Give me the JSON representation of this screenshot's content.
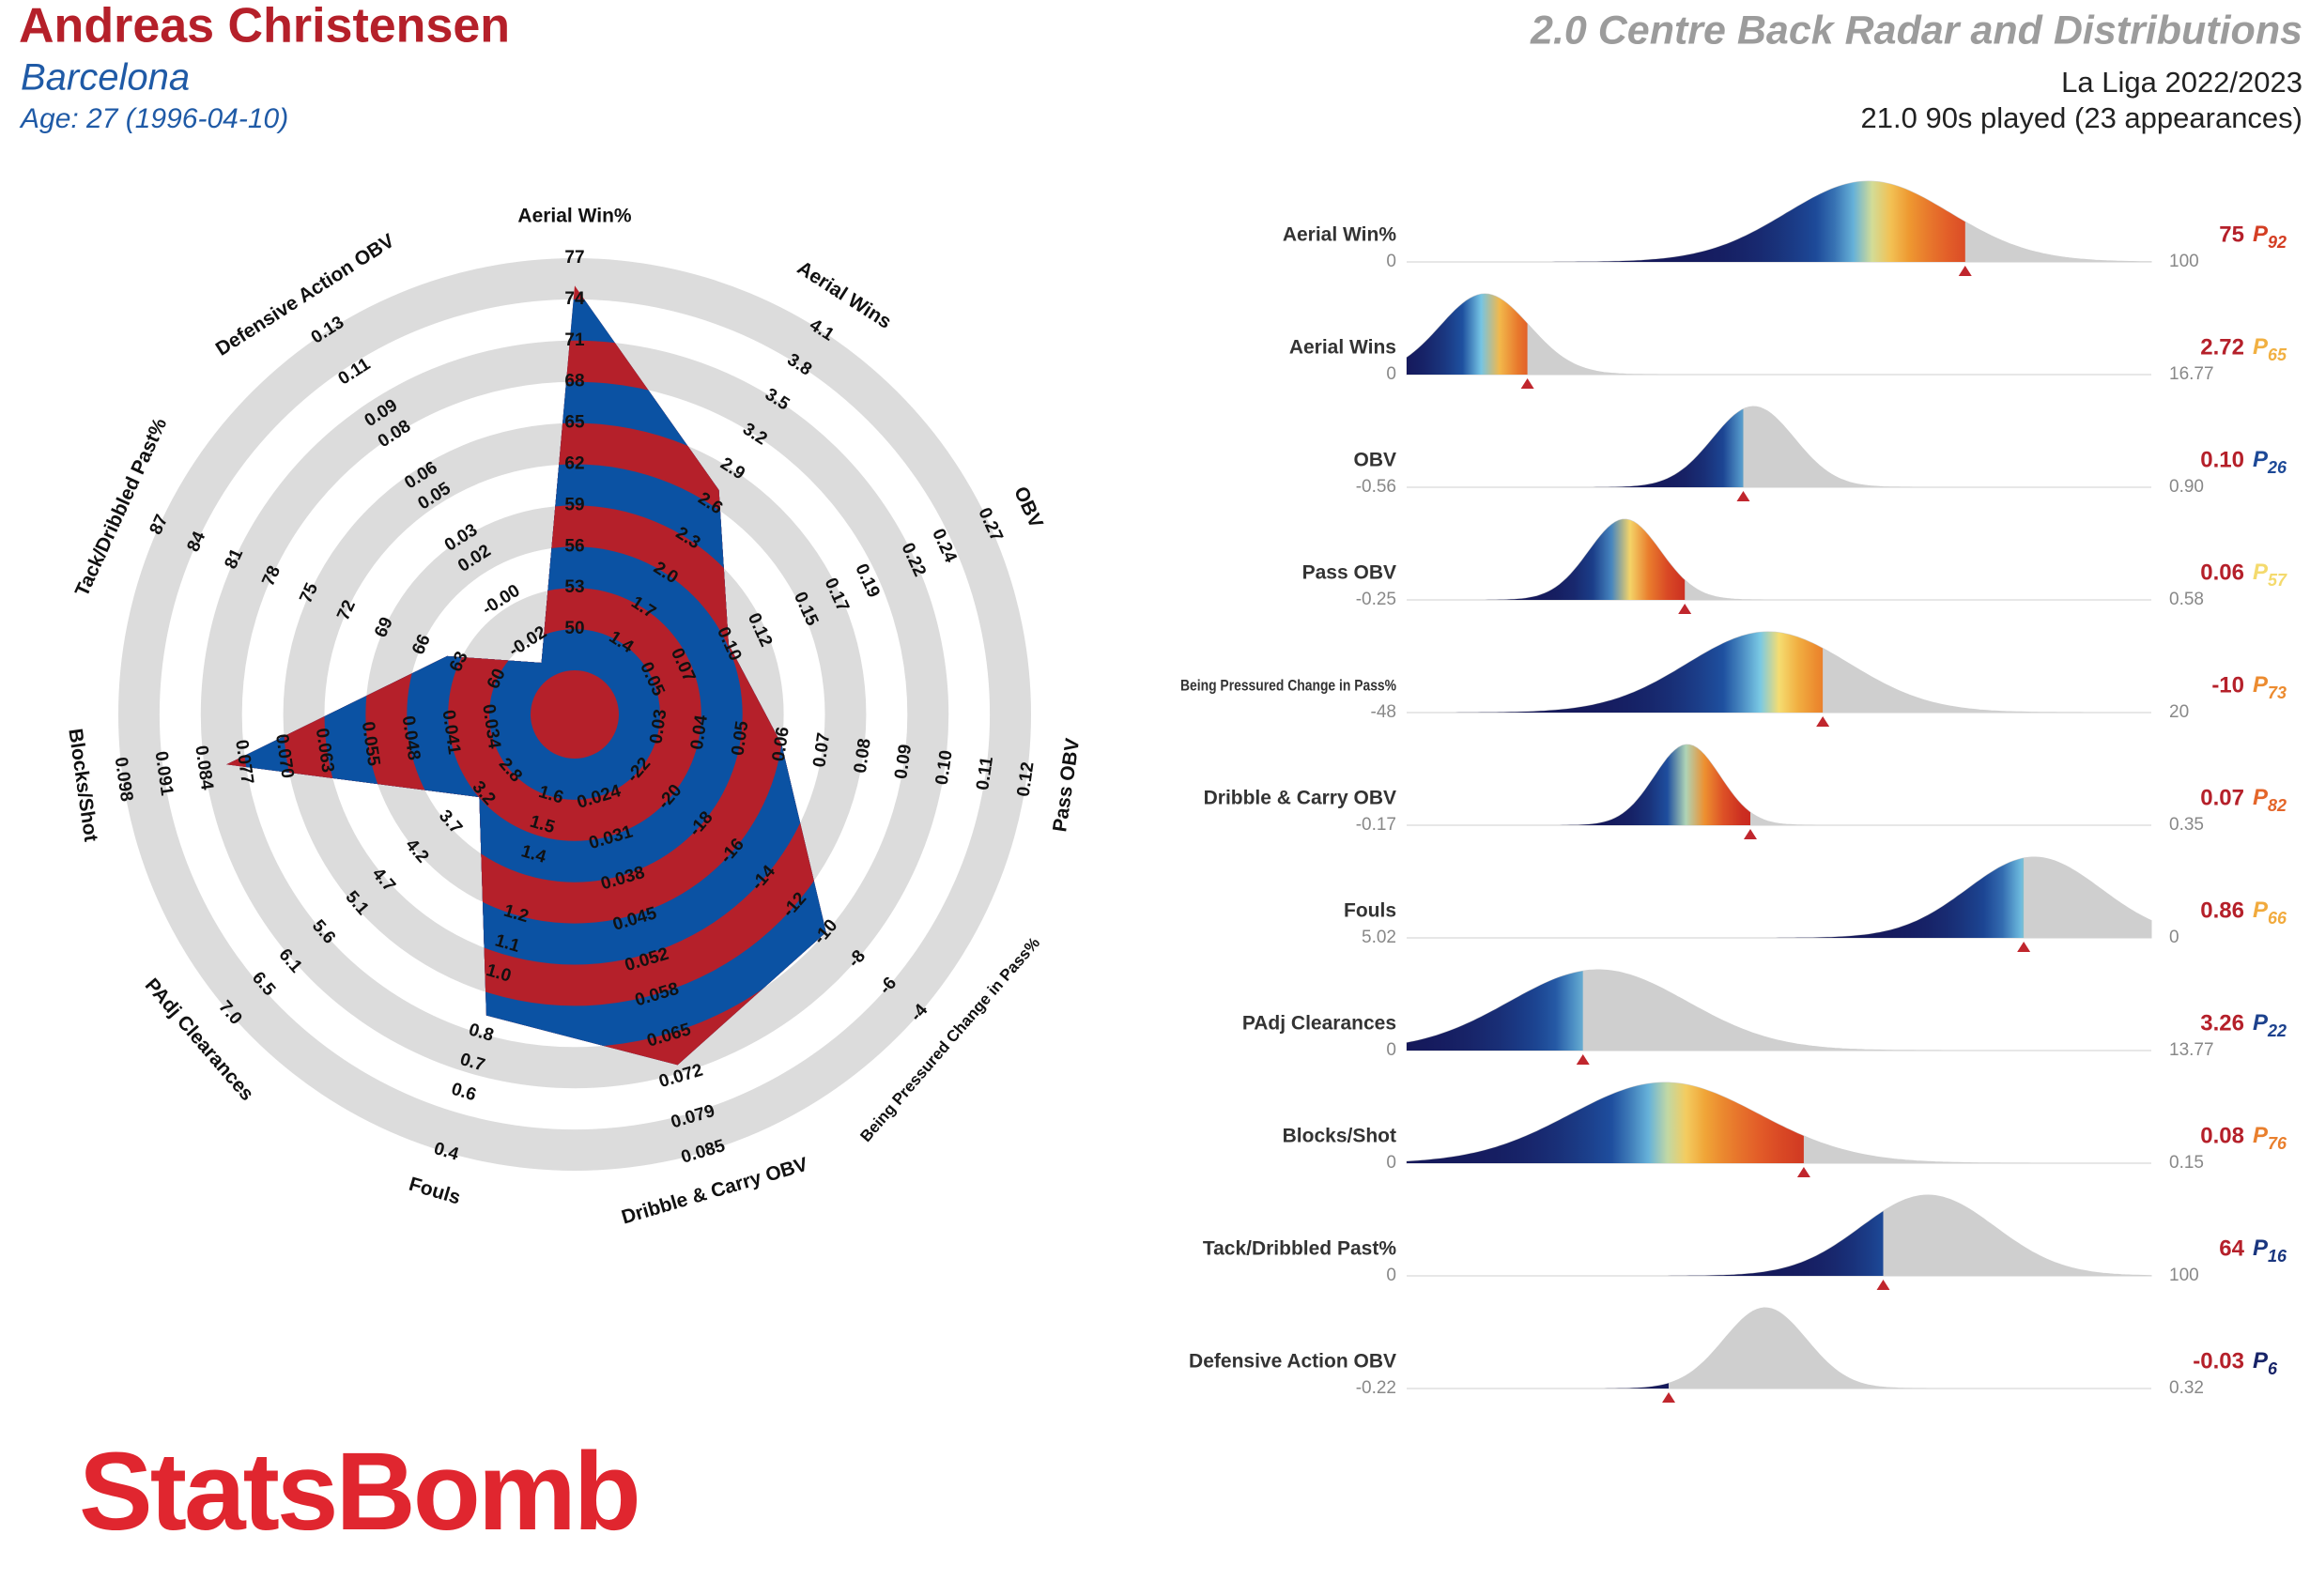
{
  "header": {
    "player": "Andreas Christensen",
    "team": "Barcelona",
    "age": "Age: 27 (1996-04-10)",
    "title": "2.0 Centre Back Radar and Distributions",
    "competition": "La Liga 2022/2023",
    "minutes": "21.0 90s played (23 appearances)"
  },
  "logo": "StatsBomb",
  "chart_data": {
    "type": "radar",
    "percentile_prefix": "P",
    "metrics": [
      {
        "name": "Aerial Win%",
        "radar_lim": [
          47,
          77
        ],
        "radar_ticks": [
          50,
          53,
          56,
          59,
          62,
          65,
          68,
          71,
          74,
          77
        ],
        "value": 75,
        "percentile": 92,
        "dist_lim": [
          0,
          100
        ],
        "dist_mean": 62,
        "dist_sd": 11
      },
      {
        "name": "Aerial Wins",
        "radar_lim": [
          1.1,
          4.1
        ],
        "radar_ticks": [
          1.4,
          1.7,
          {
            "value": 2,
            "label": "2.0"
          },
          2.3,
          2.6,
          2.9,
          3.2,
          3.5,
          3.8,
          4.1
        ],
        "value": 2.72,
        "percentile": 65,
        "dist_lim": [
          0,
          16.77
        ],
        "dist_mean": 1.76,
        "dist_sd": 1.0
      },
      {
        "name": "OBV",
        "radar_lim": [
          0.026,
          0.27
        ],
        "radar_ticks": [
          0.05,
          0.07,
          {
            "value": 0.1,
            "label": "0.10"
          },
          0.12,
          0.15,
          0.17,
          0.19,
          0.22,
          0.24,
          0.27
        ],
        "value": 0.1,
        "value_label": "0.10",
        "percentile": 26,
        "dist_lim": [
          -0.56,
          {
            "value": 0.9,
            "label": "0.90"
          }
        ],
        "dist_mean": 0.12,
        "dist_sd": 0.08
      },
      {
        "name": "Pass OBV",
        "radar_lim": [
          0.02,
          0.12
        ],
        "radar_ticks": [
          0.03,
          0.04,
          0.05,
          0.06,
          0.07,
          0.08,
          0.09,
          {
            "value": 0.1,
            "label": "0.10"
          },
          0.11,
          0.12
        ],
        "value": 0.06,
        "percentile": 57,
        "dist_lim": [
          -0.25,
          0.58
        ],
        "dist_mean": -0.007,
        "dist_sd": 0.04
      },
      {
        "name": "Being Pressured Change in Pass%",
        "radar_lim": [
          -24,
          -4
        ],
        "radar_ticks": [
          -22,
          -20,
          -18,
          -16,
          -14,
          -12,
          -10,
          -8,
          -6,
          -4
        ],
        "value": -10,
        "percentile": 73,
        "dist_lim": [
          -48,
          20
        ],
        "dist_mean": -15,
        "dist_sd": 7.4
      },
      {
        "name": "Dribble & Carry OBV",
        "radar_lim": [
          0.017,
          0.085
        ],
        "radar_ticks": [
          0.024,
          0.031,
          0.038,
          0.045,
          0.052,
          0.058,
          0.065,
          0.072,
          0.079,
          0.085
        ],
        "value": 0.07,
        "percentile": 82,
        "dist_lim": [
          -0.17,
          0.35
        ],
        "dist_mean": 0.026,
        "dist_sd": 0.023
      },
      {
        "name": "Fouls",
        "radar_lim": [
          1.73,
          0.4
        ],
        "radar_ticks": [
          1.6,
          1.5,
          1.4,
          1.2,
          1.1,
          {
            "value": 1,
            "label": "1.0"
          },
          0.8,
          0.7,
          0.6,
          0.4
        ],
        "value": 0.86,
        "percentile": 66,
        "dist_lim": [
          5.02,
          0
        ],
        "dist_mean": 0.79,
        "dist_sd": 0.45
      },
      {
        "name": "PAdj Clearances",
        "radar_lim": [
          2.33,
          7
        ],
        "radar_ticks": [
          2.8,
          3.2,
          3.7,
          4.2,
          4.7,
          5.1,
          5.6,
          6.1,
          6.5,
          {
            "value": 7,
            "label": "7.0"
          }
        ],
        "value": 3.26,
        "percentile": 22,
        "dist_lim": [
          0,
          13.77
        ],
        "dist_mean": 3.54,
        "dist_sd": 1.64
      },
      {
        "name": "Blocks/Shot",
        "radar_lim": [
          0.027,
          0.098
        ],
        "radar_ticks": [
          0.034,
          0.041,
          0.048,
          0.055,
          0.063,
          {
            "value": 0.07,
            "label": "0.070"
          },
          0.077,
          0.084,
          0.091,
          0.098
        ],
        "value": 0.08,
        "percentile": 76,
        "dist_lim": [
          0,
          0.15
        ],
        "dist_mean": 0.052,
        "dist_sd": 0.019
      },
      {
        "name": "Tack/Dribbled Past%",
        "radar_lim": [
          57,
          87
        ],
        "radar_ticks": [
          60,
          63,
          66,
          69,
          72,
          75,
          78,
          81,
          84,
          87
        ],
        "value": 64,
        "percentile": 16,
        "dist_lim": [
          0,
          100
        ],
        "dist_mean": 70,
        "dist_sd": 9
      },
      {
        "name": "Defensive Action OBV",
        "radar_lim": [
          -0.037,
          0.13
        ],
        "radar_ticks": [
          -0.02,
          {
            "value": 0,
            "label": "-0.00"
          },
          0.02,
          0.03,
          0.05,
          0.06,
          0.08,
          0.09,
          0.11,
          0.13
        ],
        "value": -0.03,
        "percentile": 6,
        "dist_lim": [
          -0.22,
          0.32
        ],
        "dist_mean": 0.04,
        "dist_sd": 0.03
      }
    ]
  }
}
